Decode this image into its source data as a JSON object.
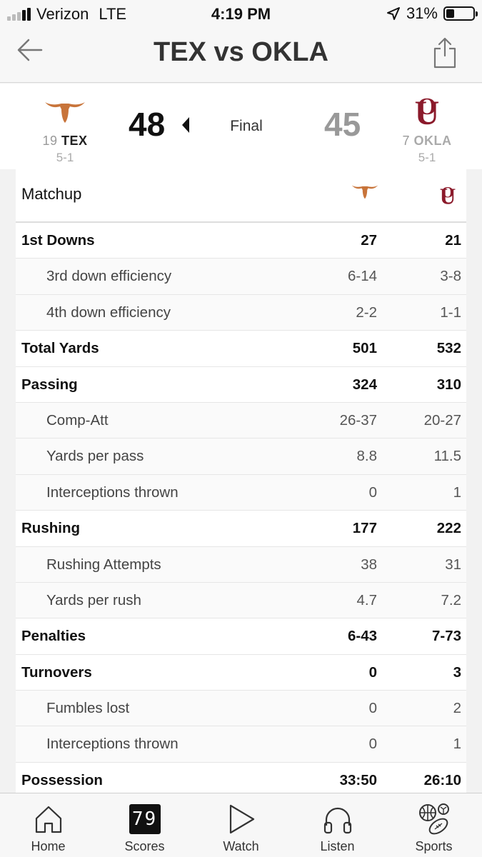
{
  "status_bar": {
    "carrier": "Verizon",
    "network": "LTE",
    "time": "4:19 PM",
    "battery": "31%",
    "battery_level": 0.31
  },
  "nav": {
    "title": "TEX vs OKLA"
  },
  "game": {
    "status": "Final",
    "home": {
      "rank": "19",
      "abbr": "TEX",
      "record": "5-1",
      "score": "48",
      "color": "#c8743a"
    },
    "away": {
      "rank": "7",
      "abbr": "OKLA",
      "record": "5-1",
      "score": "45",
      "color": "#8b1a2b"
    }
  },
  "matchup": {
    "title": "Matchup",
    "rows": [
      {
        "label": "1st Downs",
        "home": "27",
        "away": "21",
        "sub": false
      },
      {
        "label": "3rd down efficiency",
        "home": "6-14",
        "away": "3-8",
        "sub": true
      },
      {
        "label": "4th down efficiency",
        "home": "2-2",
        "away": "1-1",
        "sub": true
      },
      {
        "label": "Total Yards",
        "home": "501",
        "away": "532",
        "sub": false
      },
      {
        "label": "Passing",
        "home": "324",
        "away": "310",
        "sub": false
      },
      {
        "label": "Comp-Att",
        "home": "26-37",
        "away": "20-27",
        "sub": true
      },
      {
        "label": "Yards per pass",
        "home": "8.8",
        "away": "11.5",
        "sub": true
      },
      {
        "label": "Interceptions thrown",
        "home": "0",
        "away": "1",
        "sub": true
      },
      {
        "label": "Rushing",
        "home": "177",
        "away": "222",
        "sub": false
      },
      {
        "label": "Rushing Attempts",
        "home": "38",
        "away": "31",
        "sub": true
      },
      {
        "label": "Yards per rush",
        "home": "4.7",
        "away": "7.2",
        "sub": true
      },
      {
        "label": "Penalties",
        "home": "6-43",
        "away": "7-73",
        "sub": false
      },
      {
        "label": "Turnovers",
        "home": "0",
        "away": "3",
        "sub": false
      },
      {
        "label": "Fumbles lost",
        "home": "0",
        "away": "2",
        "sub": true
      },
      {
        "label": "Interceptions thrown",
        "home": "0",
        "away": "1",
        "sub": true
      },
      {
        "label": "Possession",
        "home": "33:50",
        "away": "26:10",
        "sub": false
      }
    ]
  },
  "tabs": [
    {
      "label": "Home",
      "icon": "house-icon"
    },
    {
      "label": "Scores",
      "icon": "scoreboard-icon",
      "icon_text": "79"
    },
    {
      "label": "Watch",
      "icon": "play-icon"
    },
    {
      "label": "Listen",
      "icon": "headphones-icon"
    },
    {
      "label": "Sports",
      "icon": "sports-balls-icon"
    }
  ]
}
